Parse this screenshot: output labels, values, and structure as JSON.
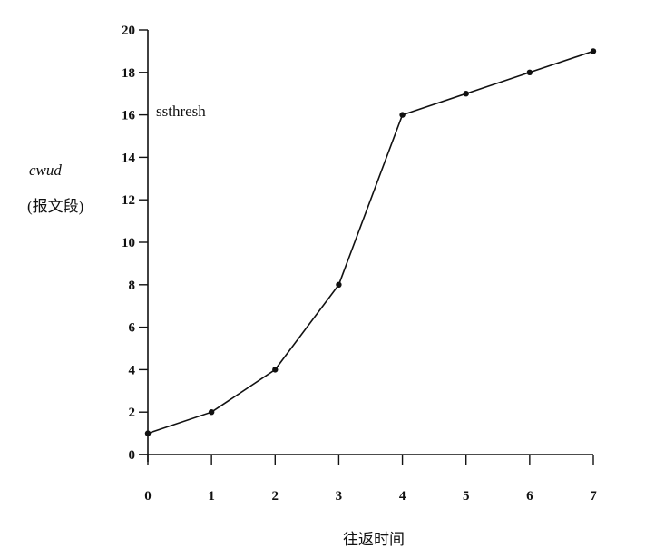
{
  "chart_data": {
    "type": "line",
    "ylabel": "cwud",
    "ylabel_unit": "(报文段)",
    "xlabel": "往返时间",
    "xlim": [
      0,
      7
    ],
    "ylim": [
      0,
      20
    ],
    "x_ticks": [
      0,
      1,
      2,
      3,
      4,
      5,
      6,
      7
    ],
    "y_ticks": [
      0,
      2,
      4,
      6,
      8,
      10,
      12,
      14,
      16,
      18,
      20
    ],
    "annotation": "ssthresh",
    "grid": false,
    "series": [
      {
        "x": [
          0,
          1,
          2,
          3,
          4,
          5,
          6,
          7
        ],
        "values": [
          1,
          2,
          4,
          8,
          16,
          17,
          18,
          19
        ]
      }
    ]
  }
}
